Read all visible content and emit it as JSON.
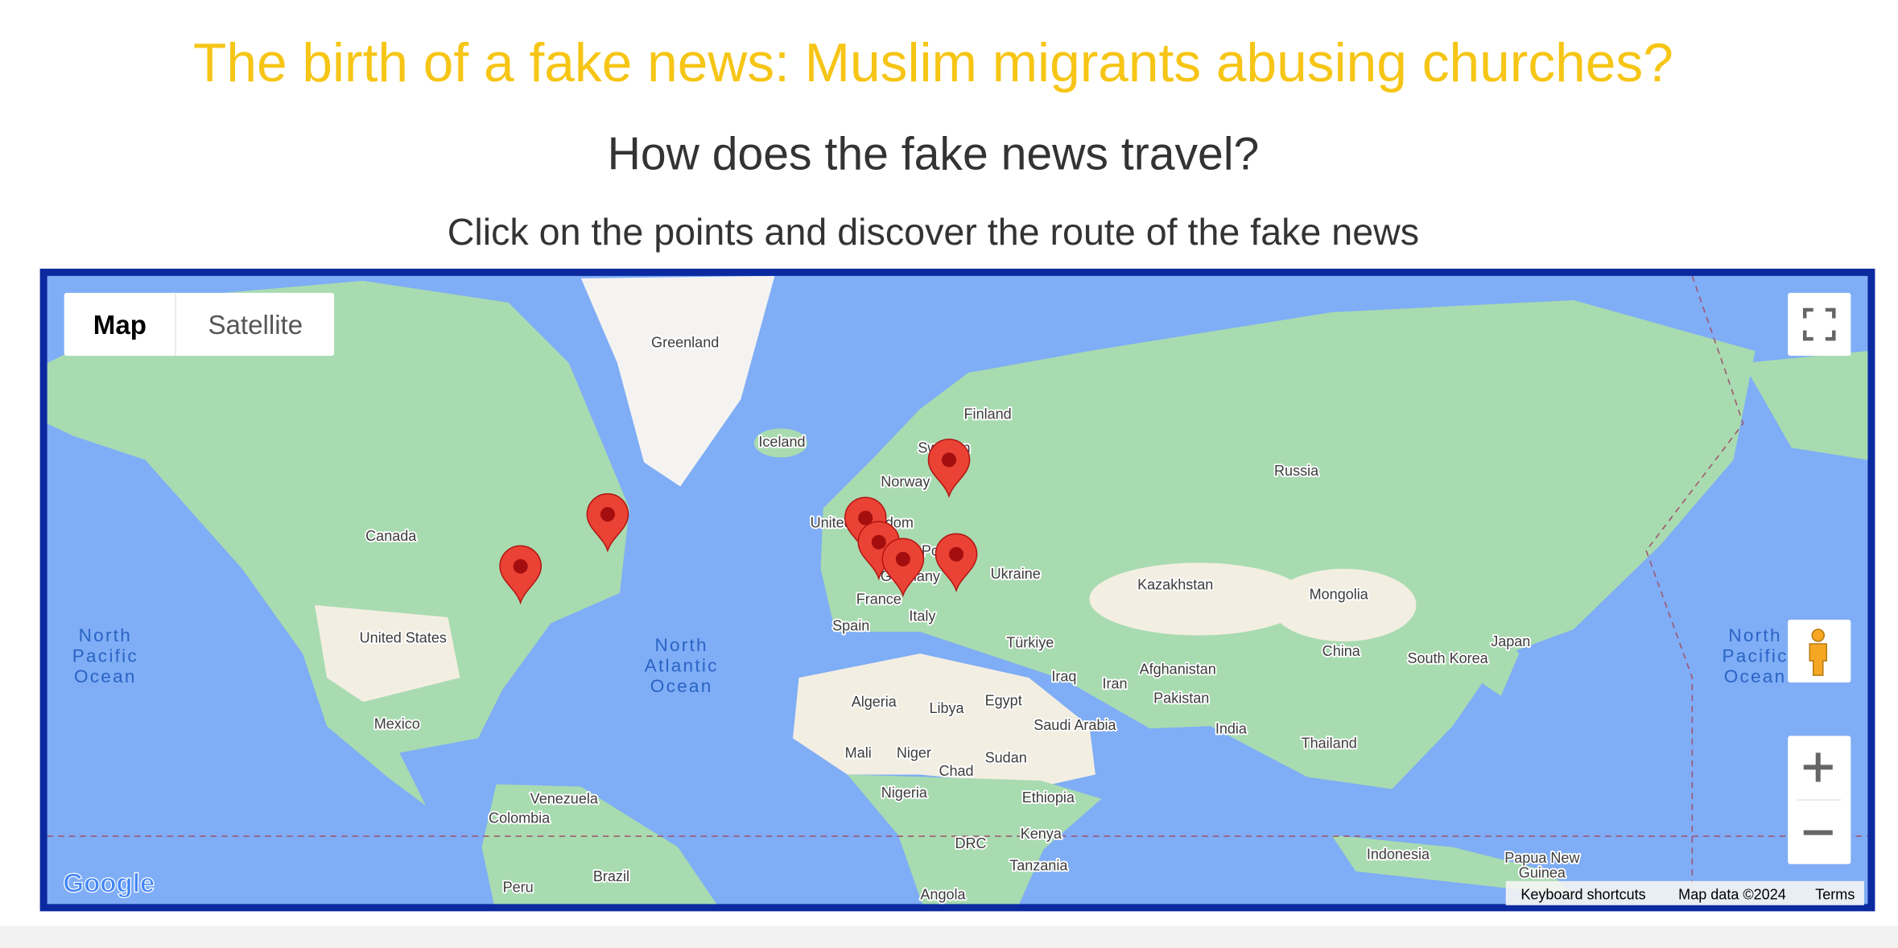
{
  "header": {
    "title": "The birth of a fake news: Muslim migrants abusing churches?",
    "subtitle": "How does the fake news travel?",
    "instruction": "Click on the points and discover the route of the fake news"
  },
  "map": {
    "type_buttons": [
      "Map",
      "Satellite"
    ],
    "labels": [
      "Greenland",
      "Iceland",
      "Finland",
      "Sweden",
      "Norway",
      "Russia",
      "Canada",
      "United Kingdom",
      "Poland",
      "Germany",
      "France",
      "Ukraine",
      "Kazakhstan",
      "Mongolia",
      "United States",
      "Spain",
      "Italy",
      "Türkiye",
      "Iraq",
      "Iran",
      "Afghanistan",
      "Pakistan",
      "China",
      "South Korea",
      "Japan",
      "Algeria",
      "Libya",
      "Egypt",
      "Saudi Arabia",
      "India",
      "Thailand",
      "Mexico",
      "Mali",
      "Niger",
      "Chad",
      "Sudan",
      "Ethiopia",
      "Nigeria",
      "Venezuela",
      "Colombia",
      "Kenya",
      "DRC",
      "Tanzania",
      "Indonesia",
      "Papua New",
      "Guinea",
      "Brazil",
      "Peru",
      "Angola"
    ],
    "ocean_labels": [
      [
        "North",
        "Pacific",
        "Ocean"
      ],
      [
        "North",
        "Atlantic",
        "Ocean"
      ],
      [
        "North",
        "Pacific",
        "Ocean"
      ]
    ],
    "logo": "Google",
    "footer": [
      "Keyboard shortcuts",
      "Map data ©2024",
      "Terms"
    ]
  }
}
